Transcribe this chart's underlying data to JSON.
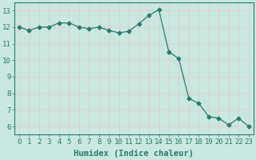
{
  "x": [
    0,
    1,
    2,
    3,
    4,
    5,
    6,
    7,
    8,
    9,
    10,
    11,
    12,
    13,
    14,
    15,
    16,
    17,
    18,
    19,
    20,
    21,
    22,
    23
  ],
  "y": [
    12.0,
    11.8,
    12.0,
    12.0,
    12.25,
    12.25,
    12.0,
    11.9,
    12.0,
    11.8,
    11.65,
    11.75,
    12.2,
    12.7,
    13.05,
    10.5,
    10.1,
    7.7,
    7.4,
    6.6,
    6.5,
    6.1,
    6.5,
    6.0
  ],
  "line_color": "#2d7a6e",
  "marker": "D",
  "marker_size": 2.5,
  "bg_color": "#c8e8e0",
  "grid_color_major": "#e8c8c8",
  "grid_color_minor": "#c8dcd8",
  "axis_color": "#2d7a6e",
  "xlabel": "Humidex (Indice chaleur)",
  "xlim": [
    -0.5,
    23.5
  ],
  "ylim": [
    5.5,
    13.5
  ],
  "yticks": [
    6,
    7,
    8,
    9,
    10,
    11,
    12,
    13
  ],
  "xticks": [
    0,
    1,
    2,
    3,
    4,
    5,
    6,
    7,
    8,
    9,
    10,
    11,
    12,
    13,
    14,
    15,
    16,
    17,
    18,
    19,
    20,
    21,
    22,
    23
  ],
  "tick_fontsize": 6.5,
  "label_fontsize": 7.5
}
